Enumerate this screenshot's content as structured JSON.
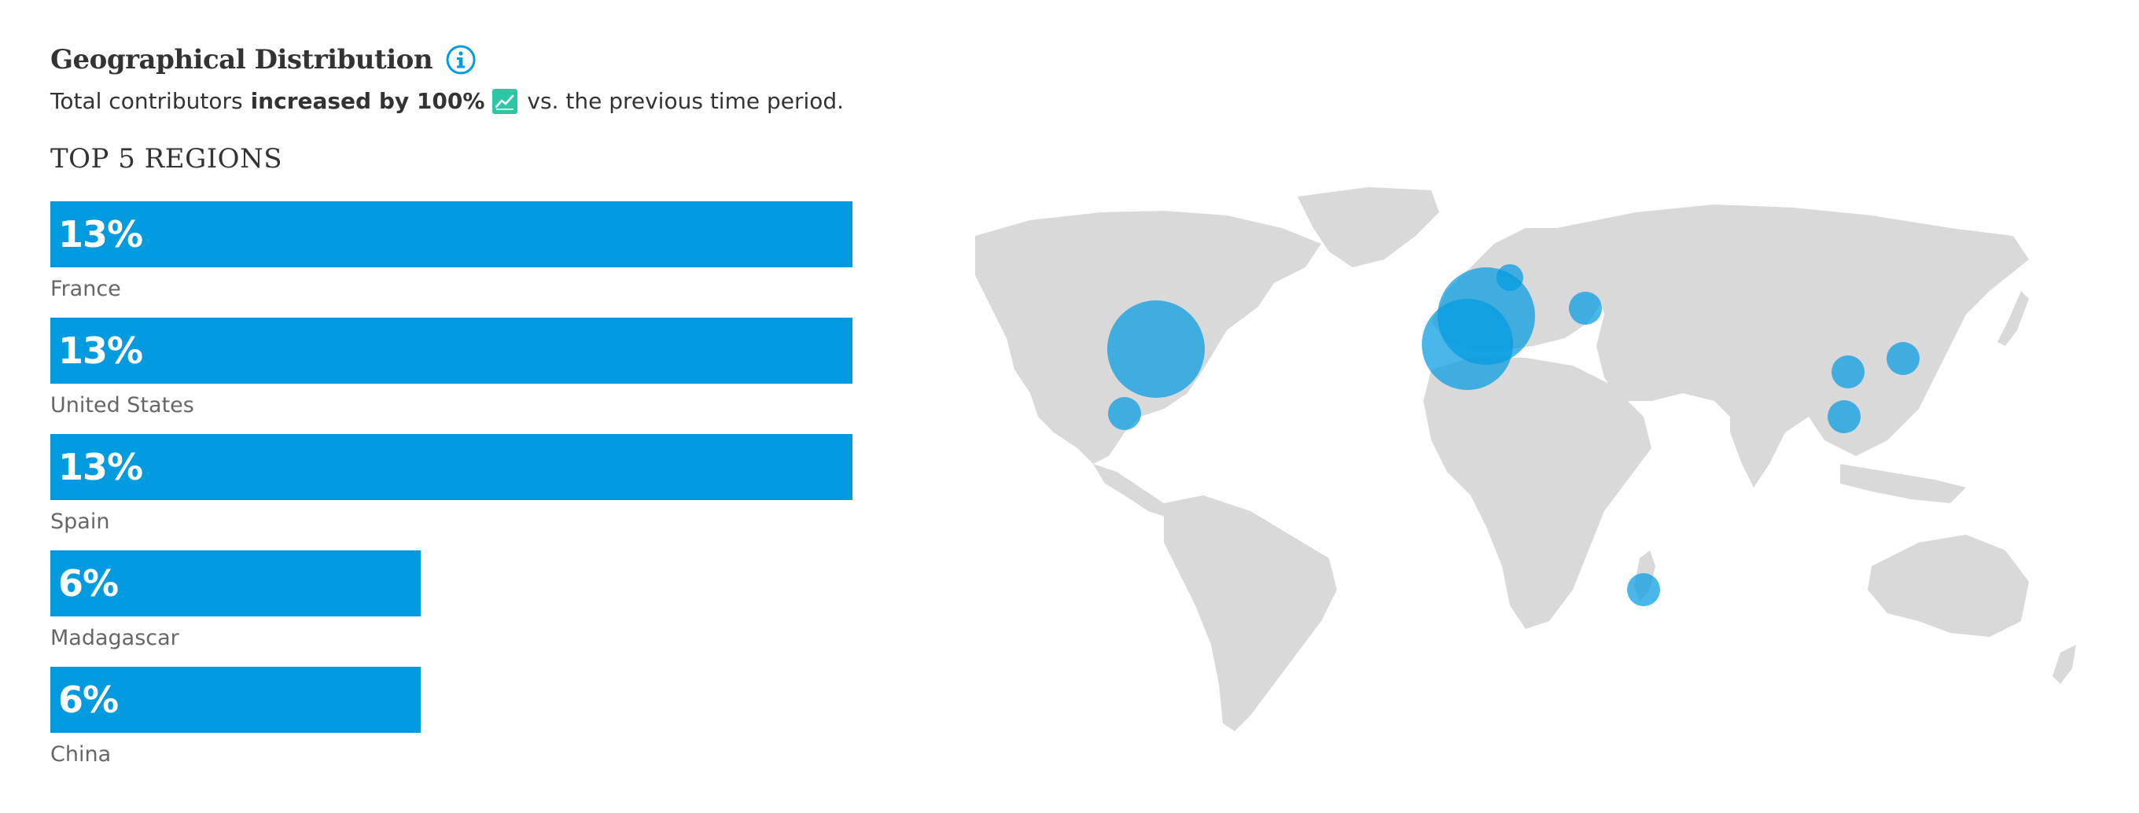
{
  "header": {
    "title": "Geographical Distribution",
    "subtitle_prefix": "Total contributors",
    "subtitle_bold": "increased by 100%",
    "subtitle_suffix": "vs. the previous time period."
  },
  "regions": {
    "heading": "TOP 5 REGIONS",
    "items": [
      {
        "pct": "13%",
        "value": 0.13,
        "label": "France"
      },
      {
        "pct": "13%",
        "value": 0.13,
        "label": "United States"
      },
      {
        "pct": "13%",
        "value": 0.13,
        "label": "Spain"
      },
      {
        "pct": "6%",
        "value": 0.06,
        "label": "Madagascar"
      },
      {
        "pct": "6%",
        "value": 0.06,
        "label": "China"
      }
    ]
  },
  "colors": {
    "accent": "#039be0",
    "land": "#d9d9d9",
    "trend_icon": "#2ec7a3"
  },
  "icons": {
    "info": "info-circle-icon",
    "trend": "trending-up-icon"
  }
}
